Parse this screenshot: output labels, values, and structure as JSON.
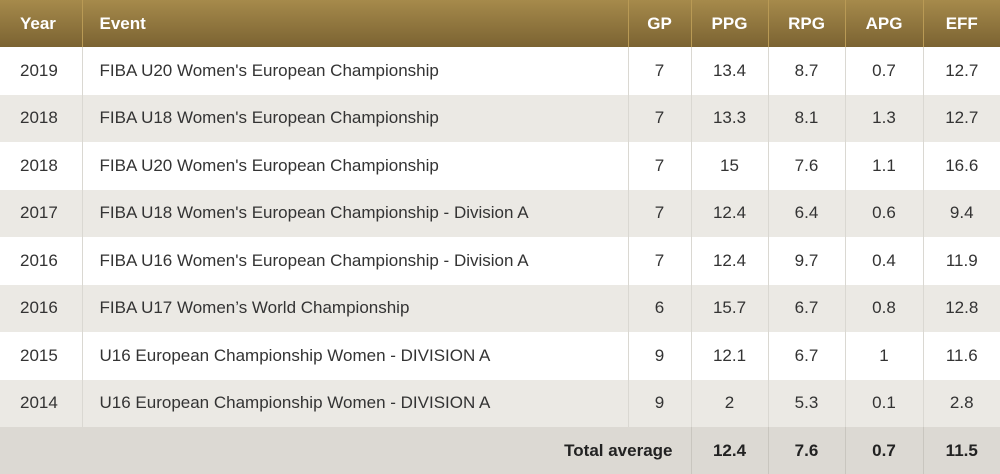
{
  "colors": {
    "header_bg_light": "#a68a4b",
    "header_bg_dark": "#7b6332",
    "row_alt": "#ebe9e4",
    "footer_bg": "#dcd9d3"
  },
  "table": {
    "headers": {
      "year": "Year",
      "event": "Event",
      "gp": "GP",
      "ppg": "PPG",
      "rpg": "RPG",
      "apg": "APG",
      "eff": "EFF"
    },
    "rows": [
      {
        "year": "2019",
        "event": "FIBA U20 Women's European Championship",
        "gp": "7",
        "ppg": "13.4",
        "rpg": "8.7",
        "apg": "0.7",
        "eff": "12.7"
      },
      {
        "year": "2018",
        "event": "FIBA U18 Women's European Championship",
        "gp": "7",
        "ppg": "13.3",
        "rpg": "8.1",
        "apg": "1.3",
        "eff": "12.7"
      },
      {
        "year": "2018",
        "event": "FIBA U20 Women's European Championship",
        "gp": "7",
        "ppg": "15",
        "rpg": "7.6",
        "apg": "1.1",
        "eff": "16.6"
      },
      {
        "year": "2017",
        "event": "FIBA U18 Women's European Championship - Division A",
        "gp": "7",
        "ppg": "12.4",
        "rpg": "6.4",
        "apg": "0.6",
        "eff": "9.4"
      },
      {
        "year": "2016",
        "event": "FIBA U16 Women's European Championship - Division A",
        "gp": "7",
        "ppg": "12.4",
        "rpg": "9.7",
        "apg": "0.4",
        "eff": "11.9"
      },
      {
        "year": "2016",
        "event": "FIBA U17 Women’s World Championship",
        "gp": "6",
        "ppg": "15.7",
        "rpg": "6.7",
        "apg": "0.8",
        "eff": "12.8"
      },
      {
        "year": "2015",
        "event": "U16 European Championship Women - DIVISION A",
        "gp": "9",
        "ppg": "12.1",
        "rpg": "6.7",
        "apg": "1",
        "eff": "11.6"
      },
      {
        "year": "2014",
        "event": "U16 European Championship Women - DIVISION A",
        "gp": "9",
        "ppg": "2",
        "rpg": "5.3",
        "apg": "0.1",
        "eff": "2.8"
      }
    ],
    "footer": {
      "label": "Total average",
      "ppg": "12.4",
      "rpg": "7.6",
      "apg": "0.7",
      "eff": "11.5"
    }
  }
}
